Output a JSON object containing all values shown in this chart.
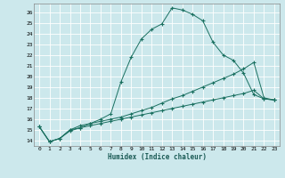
{
  "title": "",
  "xlabel": "Humidex (Indice chaleur)",
  "ylabel": "",
  "bg_color": "#cce8ec",
  "line_color": "#1a7060",
  "grid_color": "#ffffff",
  "xlim": [
    -0.5,
    23.5
  ],
  "ylim": [
    13.5,
    26.8
  ],
  "xticks": [
    0,
    1,
    2,
    3,
    4,
    5,
    6,
    7,
    8,
    9,
    10,
    11,
    12,
    13,
    14,
    15,
    16,
    17,
    18,
    19,
    20,
    21,
    22,
    23
  ],
  "yticks": [
    14,
    15,
    16,
    17,
    18,
    19,
    20,
    21,
    22,
    23,
    24,
    25,
    26
  ],
  "series": [
    {
      "x": [
        0,
        1,
        2,
        3,
        4,
        5,
        6,
        7,
        8,
        9,
        10,
        11,
        12,
        13,
        14,
        15,
        16,
        17,
        18,
        19,
        20,
        21,
        22,
        23
      ],
      "y": [
        15.3,
        13.9,
        14.2,
        15.0,
        15.2,
        15.6,
        16.0,
        16.5,
        19.5,
        21.8,
        23.5,
        24.4,
        24.9,
        26.4,
        26.2,
        25.8,
        25.2,
        23.2,
        22.0,
        21.5,
        20.3,
        18.3,
        17.9,
        17.8
      ]
    },
    {
      "x": [
        0,
        1,
        2,
        3,
        4,
        5,
        6,
        7,
        8,
        9,
        10,
        11,
        12,
        13,
        14,
        15,
        16,
        17,
        18,
        19,
        20,
        21,
        22,
        23
      ],
      "y": [
        15.3,
        13.9,
        14.2,
        15.0,
        15.4,
        15.6,
        15.8,
        16.0,
        16.2,
        16.5,
        16.8,
        17.1,
        17.5,
        17.9,
        18.2,
        18.6,
        19.0,
        19.4,
        19.8,
        20.2,
        20.7,
        21.3,
        18.0,
        17.8
      ]
    },
    {
      "x": [
        0,
        1,
        2,
        3,
        4,
        5,
        6,
        7,
        8,
        9,
        10,
        11,
        12,
        13,
        14,
        15,
        16,
        17,
        18,
        19,
        20,
        21,
        22,
        23
      ],
      "y": [
        15.3,
        13.9,
        14.2,
        14.9,
        15.2,
        15.4,
        15.6,
        15.8,
        16.0,
        16.2,
        16.4,
        16.6,
        16.8,
        17.0,
        17.2,
        17.4,
        17.6,
        17.8,
        18.0,
        18.2,
        18.4,
        18.7,
        17.9,
        17.8
      ]
    }
  ]
}
